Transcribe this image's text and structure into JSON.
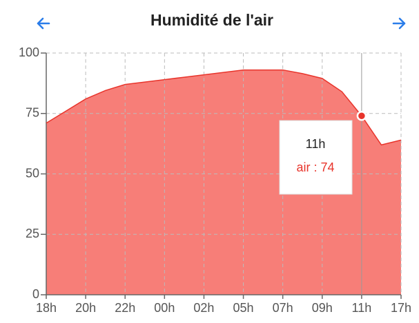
{
  "chart_data": {
    "type": "area",
    "title": "Humidité de l'air",
    "categories": [
      "18h",
      null,
      "20h",
      null,
      "22h",
      null,
      "00h",
      null,
      "02h",
      null,
      "05h",
      null,
      "07h",
      null,
      "09h",
      null,
      "11h",
      null,
      "17h"
    ],
    "series": [
      {
        "name": "air",
        "color": "#e8342b",
        "fill": "#f77e78",
        "values": [
          71,
          76,
          81,
          84.5,
          87,
          88,
          89,
          90,
          91,
          92,
          93,
          93,
          93,
          91.5,
          89.5,
          84,
          74,
          62,
          64
        ]
      }
    ],
    "ylim": [
      0,
      100
    ],
    "yticks": [
      0,
      25,
      50,
      75,
      100
    ],
    "grid": true,
    "tooltip": {
      "index": 16,
      "title": "11h",
      "text": "air : 74"
    }
  }
}
